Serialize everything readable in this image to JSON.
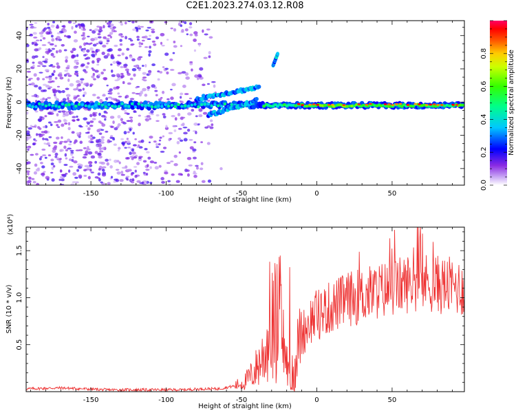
{
  "title": "C2E1.2023.274.03.12.R08",
  "chart_data": [
    {
      "type": "heatmap",
      "xlabel": "Height of straight line (km)",
      "ylabel": "Frequency (Hz)",
      "xlim": [
        -193,
        98
      ],
      "ylim": [
        -50,
        49
      ],
      "xticks": [
        "-150",
        "-100",
        "-50",
        "0",
        "50"
      ],
      "yticks": [
        "40",
        "20",
        "0",
        "-20",
        "-40"
      ],
      "colorbar": {
        "label": "Normalized spectral amplitude",
        "ticks": [
          "0.0",
          "0.2",
          "0.4",
          "0.6",
          "0.8"
        ],
        "range": [
          0,
          1
        ]
      },
      "features": [
        {
          "name": "main trace",
          "x_range": [
            -193,
            98
          ],
          "frequency": 0
        },
        {
          "name": "rising branch",
          "x_range": [
            -80,
            -40
          ],
          "frequency_range": [
            5,
            12
          ]
        },
        {
          "name": "upper spot",
          "x": -27,
          "frequency": 26
        }
      ]
    },
    {
      "type": "line",
      "xlabel": "Height of straight line (km)",
      "ylabel": "SNR (10 * v/v)",
      "y_multiplier": "(x10⁴)",
      "xlim": [
        -193,
        98
      ],
      "ylim": [
        0,
        1.75
      ],
      "xticks": [
        "-150",
        "-100",
        "-50",
        "0",
        "50"
      ],
      "yticks": [
        "1.5",
        "1.0",
        "0.5"
      ],
      "color": "#ee3333",
      "x": [
        -193,
        -170,
        -140,
        -110,
        -90,
        -75,
        -65,
        -55,
        -48,
        -42,
        -35,
        -30,
        -25,
        -20,
        -17,
        -12,
        -5,
        0,
        10,
        20,
        30,
        40,
        50,
        60,
        70,
        80,
        90,
        98
      ],
      "values": [
        0.03,
        0.04,
        0.02,
        0.02,
        0.02,
        0.03,
        0.03,
        0.06,
        0.1,
        0.2,
        0.4,
        0.7,
        0.8,
        0.3,
        0.05,
        0.55,
        0.75,
        0.82,
        0.9,
        0.98,
        1.02,
        1.07,
        1.1,
        1.15,
        1.17,
        1.14,
        1.12,
        1.1
      ]
    }
  ]
}
